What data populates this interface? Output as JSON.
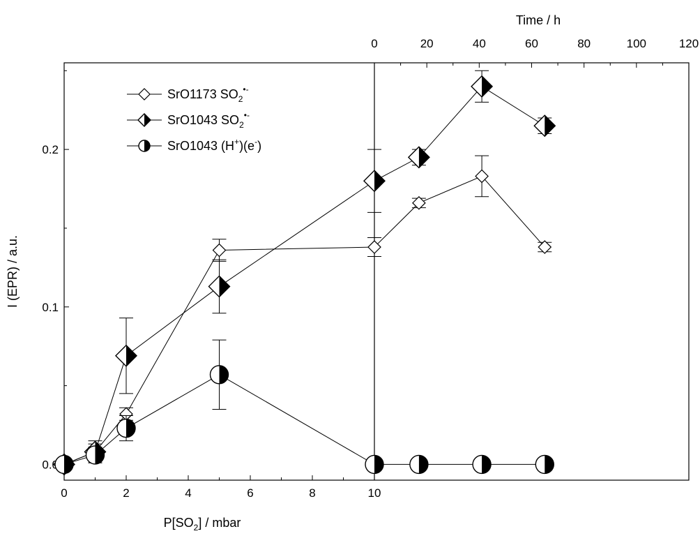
{
  "chart_data": {
    "type": "scatter",
    "ylabel": "I (EPR) / a.u.",
    "ylim": [
      -0.01,
      0.255
    ],
    "yticks": [
      {
        "v": 0.0,
        "label": "0.0"
      },
      {
        "v": 0.1,
        "label": "0.1"
      },
      {
        "v": 0.2,
        "label": "0.2"
      }
    ],
    "bottom_axis": {
      "label_prefix": "P[SO",
      "label_sub": "2",
      "label_suffix": "] / mbar",
      "ticks": [
        {
          "v": 0,
          "label": "0"
        },
        {
          "v": 2,
          "label": "2"
        },
        {
          "v": 4,
          "label": "4"
        },
        {
          "v": 6,
          "label": "6"
        },
        {
          "v": 8,
          "label": "8"
        },
        {
          "v": 10,
          "label": "10"
        }
      ]
    },
    "top_axis": {
      "label": "Time / h",
      "ticks": [
        {
          "v": 0,
          "label": "0"
        },
        {
          "v": 20,
          "label": "20"
        },
        {
          "v": 40,
          "label": "40"
        },
        {
          "v": 60,
          "label": "60"
        },
        {
          "v": 80,
          "label": "80"
        },
        {
          "v": 100,
          "label": "100"
        },
        {
          "v": 120,
          "label": "120"
        }
      ]
    },
    "legend": {
      "position": "top-left",
      "entries": [
        {
          "series": 0,
          "name_main": "SrO1173 SO",
          "name_sub": "2",
          "name_sup": "•-"
        },
        {
          "series": 1,
          "name_main": "SrO1043 SO",
          "name_sub": "2",
          "name_sup": "•-"
        },
        {
          "series": 2,
          "name_main": "SrO1043 (H",
          "name_sup": "+",
          "name_mid": ")(e",
          "name_sup2": "-",
          "name_end": ")"
        }
      ]
    },
    "series": [
      {
        "marker": "diamond-open",
        "color": "#000000",
        "points": [
          {
            "axis": "pressure",
            "x": 0,
            "y": 0.0,
            "err": 0
          },
          {
            "axis": "pressure",
            "x": 1,
            "y": 0.008,
            "err": 0.005
          },
          {
            "axis": "pressure",
            "x": 2,
            "y": 0.032,
            "err": 0.004
          },
          {
            "axis": "pressure",
            "x": 5,
            "y": 0.136,
            "err": 0.007
          },
          {
            "axis": "time",
            "x": 0,
            "y": 0.138,
            "err": 0.006
          },
          {
            "axis": "time",
            "x": 17,
            "y": 0.166,
            "err": 0.003
          },
          {
            "axis": "time",
            "x": 41,
            "y": 0.183,
            "err": 0.013
          },
          {
            "axis": "time",
            "x": 65,
            "y": 0.138,
            "err": 0.003
          }
        ]
      },
      {
        "marker": "diamond-half-right",
        "color": "#000000",
        "points": [
          {
            "axis": "pressure",
            "x": 0,
            "y": 0.0,
            "err": 0
          },
          {
            "axis": "pressure",
            "x": 1,
            "y": 0.008,
            "err": 0.007
          },
          {
            "axis": "pressure",
            "x": 2,
            "y": 0.069,
            "err": 0.024
          },
          {
            "axis": "pressure",
            "x": 5,
            "y": 0.113,
            "err": 0.017
          },
          {
            "axis": "time",
            "x": 0,
            "y": 0.18,
            "err": 0.02
          },
          {
            "axis": "time",
            "x": 17,
            "y": 0.195,
            "err": 0.005
          },
          {
            "axis": "time",
            "x": 41,
            "y": 0.24,
            "err": 0.01
          },
          {
            "axis": "time",
            "x": 65,
            "y": 0.215,
            "err": 0.005
          }
        ]
      },
      {
        "marker": "circle-half-right",
        "color": "#000000",
        "points": [
          {
            "axis": "pressure",
            "x": 0,
            "y": 0.0,
            "err": 0
          },
          {
            "axis": "pressure",
            "x": 1,
            "y": 0.006,
            "err": 0.005
          },
          {
            "axis": "pressure",
            "x": 2,
            "y": 0.023,
            "err": 0.008
          },
          {
            "axis": "pressure",
            "x": 5,
            "y": 0.057,
            "err": 0.022
          },
          {
            "axis": "pressure",
            "x": 10,
            "y": 0.0,
            "err": 0
          },
          {
            "axis": "time",
            "x": 17,
            "y": 0.0,
            "err": 0
          },
          {
            "axis": "time",
            "x": 41,
            "y": 0.0,
            "err": 0
          },
          {
            "axis": "time",
            "x": 65,
            "y": 0.0,
            "err": 0
          }
        ]
      }
    ],
    "grid": false
  }
}
